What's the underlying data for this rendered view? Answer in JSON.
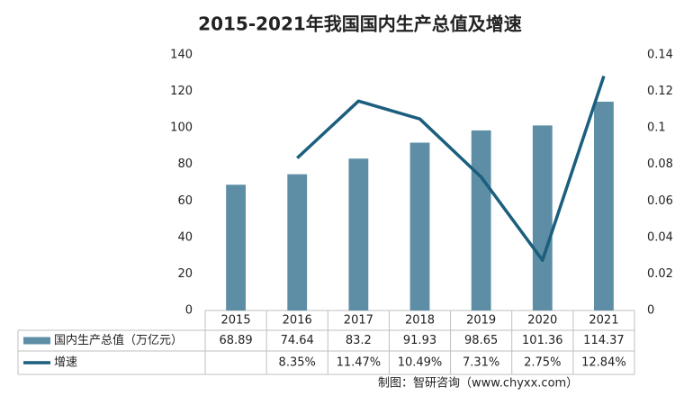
{
  "chart_data": {
    "type": "bar",
    "title": "2015-2021年我国国内生产总值及增速",
    "categories": [
      "2015",
      "2016",
      "2017",
      "2018",
      "2019",
      "2020",
      "2021"
    ],
    "series": [
      {
        "name": "国内生产总值（万亿元）",
        "type": "bar",
        "color": "#5d8ea6",
        "values": [
          68.89,
          74.64,
          83.2,
          91.93,
          98.65,
          101.36,
          114.37
        ]
      },
      {
        "name": "增速",
        "type": "line",
        "axis": "y2",
        "color": "#1b5e7d",
        "values": [
          null,
          0.0835,
          0.1147,
          0.1049,
          0.0731,
          0.0275,
          0.1284
        ],
        "value_labels": [
          null,
          "8.35%",
          "11.47%",
          "10.49%",
          "7.31%",
          "2.75%",
          "12.84%"
        ]
      }
    ],
    "ylim": [
      0,
      140
    ],
    "yticks": [
      0,
      20,
      40,
      60,
      80,
      100,
      120,
      140
    ],
    "y2lim": [
      0,
      0.14
    ],
    "y2ticks": [
      0,
      0.02,
      0.04,
      0.06,
      0.08,
      0.1,
      0.12,
      0.14
    ],
    "source": "制图：智研咨询（www.chyxx.com）"
  }
}
